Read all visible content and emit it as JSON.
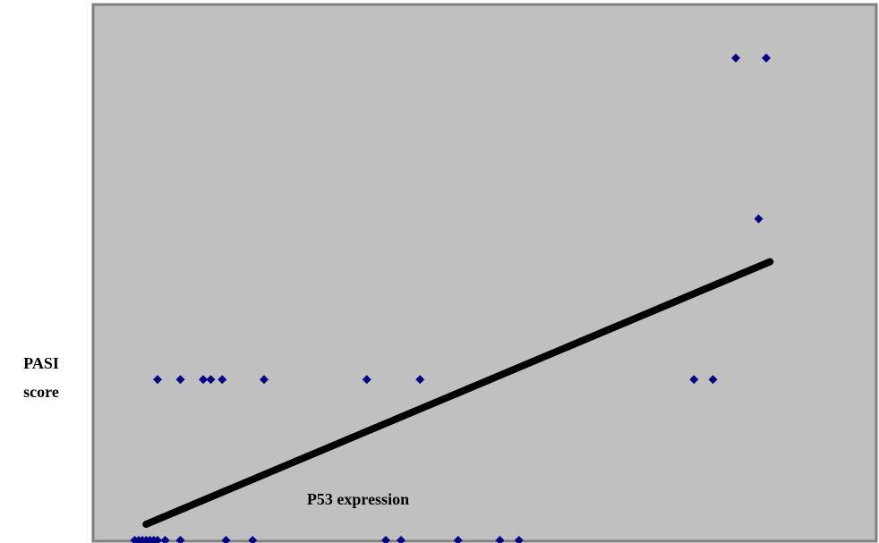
{
  "chart_data": {
    "type": "scatter",
    "title": "",
    "xlabel": "P53 expression",
    "ylabel_lines": [
      "PASI",
      "score"
    ],
    "xlim": [
      0,
      100
    ],
    "ylim": [
      0,
      100
    ],
    "grid": false,
    "legend": "none",
    "colors": {
      "plot_bg": "#c0c0c0",
      "frame": "#808080",
      "marker": "#000080",
      "trendline": "#000000"
    },
    "points": [
      {
        "x": 3,
        "y": 0
      },
      {
        "x": 3.5,
        "y": 0
      },
      {
        "x": 4,
        "y": 0
      },
      {
        "x": 4.5,
        "y": 0
      },
      {
        "x": 5,
        "y": 0
      },
      {
        "x": 5.5,
        "y": 0
      },
      {
        "x": 6,
        "y": 0
      },
      {
        "x": 7,
        "y": 0
      },
      {
        "x": 9,
        "y": 0
      },
      {
        "x": 15,
        "y": 0
      },
      {
        "x": 18.5,
        "y": 0
      },
      {
        "x": 36,
        "y": 0
      },
      {
        "x": 38,
        "y": 0
      },
      {
        "x": 45.5,
        "y": 0
      },
      {
        "x": 51,
        "y": 0
      },
      {
        "x": 53.5,
        "y": 0
      },
      {
        "x": 6,
        "y": 30
      },
      {
        "x": 9,
        "y": 30
      },
      {
        "x": 12,
        "y": 30
      },
      {
        "x": 13,
        "y": 30
      },
      {
        "x": 14.5,
        "y": 30
      },
      {
        "x": 20,
        "y": 30
      },
      {
        "x": 33.5,
        "y": 30
      },
      {
        "x": 40.5,
        "y": 30
      },
      {
        "x": 76.5,
        "y": 30
      },
      {
        "x": 79,
        "y": 30
      },
      {
        "x": 85,
        "y": 60
      },
      {
        "x": 82,
        "y": 90
      },
      {
        "x": 86,
        "y": 90
      }
    ],
    "trendline": {
      "x": [
        4.5,
        86.5
      ],
      "y": [
        3,
        52
      ]
    }
  }
}
